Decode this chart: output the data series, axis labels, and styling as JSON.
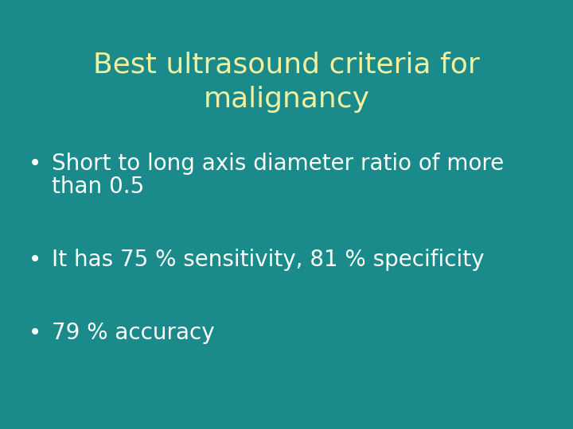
{
  "background_color": "#1a8a8a",
  "title_line1": "Best ultrasound criteria for",
  "title_line2": "malignancy",
  "title_color": "#f0f0a0",
  "title_fontsize": 26,
  "bullet_color": "#ffffff",
  "bullet_fontsize": 20,
  "bullet1_line1": "Short to long axis diameter ratio of more",
  "bullet1_line2": "than 0.5",
  "bullet2": "It has 75 % sensitivity, 81 % specificity",
  "bullet3": "79 % accuracy"
}
